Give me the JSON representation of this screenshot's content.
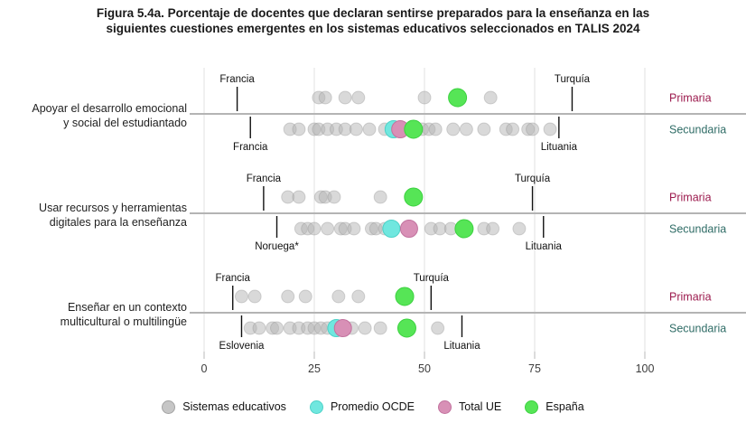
{
  "title": {
    "line1": "Figura 5.4a. Porcentaje de docentes que declaran sentirse preparados para la enseñanza en las",
    "line2": "siguientes cuestiones emergentes en los sistemas educativos seleccionados en TALIS 2024"
  },
  "legend": {
    "items": [
      {
        "label": "Sistemas educativos",
        "color": "#c6c6c6",
        "stroke": "#a3a3a3"
      },
      {
        "label": "Promedio OCDE",
        "color": "#70e7df",
        "stroke": "#4ed2c8"
      },
      {
        "label": "Total UE",
        "color": "#d890b6",
        "stroke": "#c2729e"
      },
      {
        "label": "España",
        "color": "#56e556",
        "stroke": "#3bd13f"
      }
    ]
  },
  "colors": {
    "system_dot_fill": "#b3b3b3",
    "system_dot_stroke": "#8f8f8f",
    "ocde": "#70e7df",
    "ocde_stroke": "#4ed2c8",
    "ue": "#d890b6",
    "ue_stroke": "#c2729e",
    "espana": "#56e556",
    "espana_stroke": "#3bd13f",
    "primaria_label": "#9c1b4e",
    "secundaria_label": "#2f6c66",
    "gridline": "#e0e0e0",
    "divider": "#b4b4b4",
    "axis_text": "#3c3c3c",
    "callout_text": "#111111",
    "category_text": "#1f1f1f"
  },
  "chart_data": {
    "type": "scatter",
    "title": "Figura 5.4a. Porcentaje de docentes que declaran sentirse preparados para la enseñanza en las siguientes cuestiones emergentes en los sistemas educativos seleccionados en TALIS 2024",
    "x_axis": {
      "min": 0,
      "max": 100,
      "ticks": [
        0,
        25,
        50,
        75,
        100
      ]
    },
    "legend_entries": [
      "Sistemas educativos",
      "Promedio OCDE",
      "Total UE",
      "España"
    ],
    "row_levels": [
      "Primaria",
      "Secundaria"
    ],
    "groups": [
      {
        "category": [
          "Apoyar el desarrollo emocional",
          "y social del estudiantado"
        ],
        "rows": [
          {
            "level": "Primaria",
            "systems": [
              26,
              27.5,
              32,
              35,
              50,
              65
            ],
            "espana": 57.5,
            "callouts": [
              {
                "label": "Francia",
                "value": 7.5,
                "side": "above"
              },
              {
                "label": "Turquía",
                "value": 83.5,
                "side": "above"
              }
            ]
          },
          {
            "level": "Secundaria",
            "systems": [
              19.5,
              21.5,
              25,
              26,
              28,
              30,
              32,
              34.5,
              37.5,
              41,
              49.5,
              51,
              52.5,
              56.5,
              59.5,
              63.5,
              68.5,
              70,
              73.5,
              74.5,
              78.5
            ],
            "ocde": 43,
            "ue": 44.5,
            "espana": 47.5,
            "callouts": [
              {
                "label": "Francia",
                "value": 10.5,
                "side": "below"
              },
              {
                "label": "Lituania",
                "value": 80.5,
                "side": "below"
              }
            ]
          }
        ]
      },
      {
        "category": [
          "Usar recursos y herramientas",
          "digitales para la enseñanza"
        ],
        "rows": [
          {
            "level": "Primaria",
            "systems": [
              19,
              21.5,
              26.5,
              27.5,
              29.5,
              40
            ],
            "espana": 47.5,
            "callouts": [
              {
                "label": "Francia",
                "value": 13.5,
                "side": "above"
              },
              {
                "label": "Turquía",
                "value": 74.5,
                "side": "above"
              }
            ]
          },
          {
            "level": "Secundaria",
            "systems": [
              22,
              23.5,
              25,
              28,
              31,
              32,
              34,
              38,
              39,
              41,
              51.5,
              53.5,
              56,
              63.5,
              65.5,
              71.5
            ],
            "ocde": 42.5,
            "ue": 46.5,
            "espana": 59,
            "callouts": [
              {
                "label": "Noruega*",
                "value": 16.5,
                "side": "below"
              },
              {
                "label": "Lituania",
                "value": 77,
                "side": "below"
              }
            ]
          }
        ]
      },
      {
        "category": [
          "Enseñar en un contexto",
          "multicultural o multilingüe"
        ],
        "rows": [
          {
            "level": "Primaria",
            "systems": [
              8.5,
              11.5,
              19,
              23,
              30.5,
              35
            ],
            "espana": 45.5,
            "callouts": [
              {
                "label": "Francia",
                "value": 6.5,
                "side": "above"
              },
              {
                "label": "Turquía",
                "value": 51.5,
                "side": "above"
              }
            ]
          },
          {
            "level": "Secundaria",
            "systems": [
              10.5,
              12.5,
              15.5,
              16.5,
              19.5,
              21.5,
              23.5,
              25,
              26.5,
              28,
              33.5,
              36.5,
              40,
              53
            ],
            "ocde": 30,
            "ue": 31.5,
            "espana": 46,
            "callouts": [
              {
                "label": "Eslovenia",
                "value": 8.5,
                "side": "below"
              },
              {
                "label": "Lituania",
                "value": 58.5,
                "side": "below"
              }
            ]
          }
        ]
      }
    ]
  }
}
